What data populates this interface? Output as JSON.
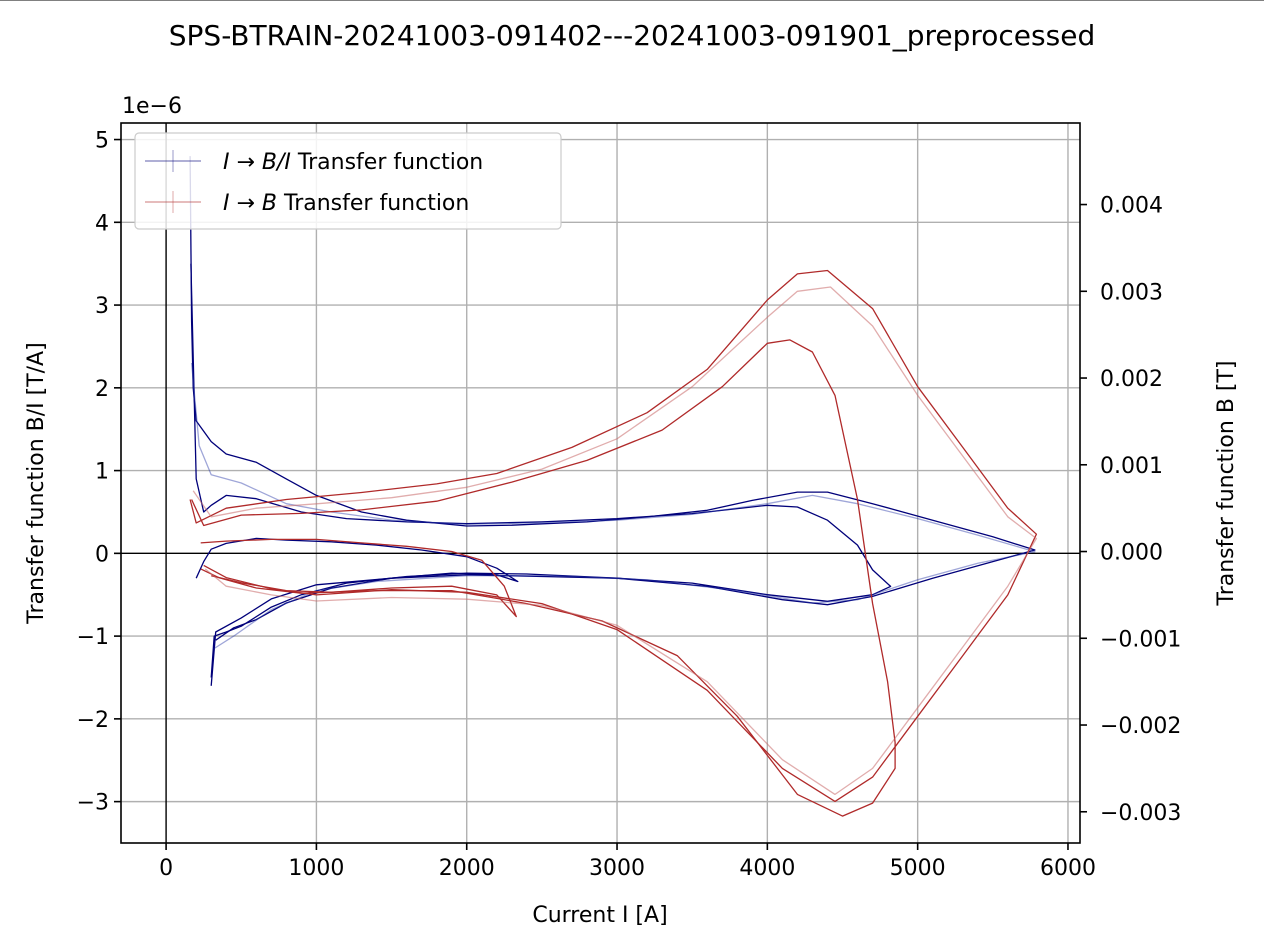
{
  "chart_data": {
    "type": "line",
    "title": "SPS-BTRAIN-20241003-091402---20241003-091901_preprocessed",
    "xlabel": "Current I [A]",
    "ylabel": "Transfer function B/I [T/A]",
    "y2label": "Transfer function B [T]",
    "y_offset_text": "1e−6",
    "xlim": [
      -300,
      6080
    ],
    "ylim": [
      -3.5,
      5.2
    ],
    "y2lim": [
      -0.00336,
      0.00494
    ],
    "x_ticks": [
      0,
      1000,
      2000,
      3000,
      4000,
      5000,
      6000
    ],
    "x_tick_labels": [
      "0",
      "1000",
      "2000",
      "3000",
      "4000",
      "5000",
      "6000"
    ],
    "y_ticks": [
      -3,
      -2,
      -1,
      0,
      1,
      2,
      3,
      4,
      5
    ],
    "y_tick_labels": [
      "−3",
      "−2",
      "−1",
      "0",
      "1",
      "2",
      "3",
      "4",
      "5"
    ],
    "y2_ticks": [
      -0.003,
      -0.002,
      -0.001,
      0.0,
      0.001,
      0.002,
      0.003,
      0.004
    ],
    "y2_tick_labels": [
      "−0.003",
      "−0.002",
      "−0.001",
      "0.000",
      "0.001",
      "0.002",
      "0.003",
      "0.004"
    ],
    "grid": true,
    "legend_placement": "top-left",
    "legend": [
      {
        "italic_part": "I",
        "arrow": " → ",
        "italic_part2": "B/I",
        "rest": " Transfer function",
        "color": "#00007a"
      },
      {
        "italic_part": "I",
        "arrow": " → ",
        "italic_part2": "B",
        "rest": " Transfer function",
        "color": "#b02a2a"
      }
    ],
    "series": [
      {
        "axis": "left",
        "color": "#00007a",
        "opacity": 1.0,
        "points": [
          [
            160,
            4.8
          ],
          [
            170,
            2.8
          ],
          [
            180,
            2.0
          ],
          [
            200,
            1.6
          ],
          [
            300,
            1.35
          ],
          [
            400,
            1.2
          ],
          [
            600,
            1.1
          ],
          [
            800,
            0.9
          ],
          [
            1000,
            0.7
          ],
          [
            1300,
            0.5
          ],
          [
            1600,
            0.4
          ],
          [
            2000,
            0.33
          ],
          [
            2300,
            0.34
          ],
          [
            2800,
            0.38
          ],
          [
            3200,
            0.44
          ],
          [
            3600,
            0.52
          ],
          [
            3900,
            0.64
          ],
          [
            4200,
            0.74
          ],
          [
            4400,
            0.74
          ],
          [
            4700,
            0.6
          ],
          [
            5100,
            0.4
          ],
          [
            5500,
            0.2
          ],
          [
            5780,
            0.04
          ],
          [
            5500,
            -0.1
          ],
          [
            5100,
            -0.3
          ],
          [
            4700,
            -0.52
          ],
          [
            4400,
            -0.62
          ],
          [
            4100,
            -0.56
          ],
          [
            3600,
            -0.4
          ],
          [
            3000,
            -0.3
          ],
          [
            2400,
            -0.25
          ],
          [
            2000,
            -0.24
          ],
          [
            1600,
            -0.28
          ],
          [
            1200,
            -0.36
          ],
          [
            900,
            -0.5
          ],
          [
            700,
            -0.65
          ],
          [
            500,
            -0.88
          ],
          [
            400,
            -0.95
          ],
          [
            320,
            -1.0
          ],
          [
            300,
            -1.5
          ]
        ]
      },
      {
        "axis": "left",
        "color": "#00007a",
        "opacity": 1.0,
        "points": [
          [
            165,
            3.5
          ],
          [
            200,
            0.9
          ],
          [
            250,
            0.5
          ],
          [
            300,
            0.58
          ],
          [
            400,
            0.7
          ],
          [
            600,
            0.66
          ],
          [
            900,
            0.5
          ],
          [
            1200,
            0.42
          ],
          [
            1600,
            0.38
          ],
          [
            2000,
            0.36
          ],
          [
            2500,
            0.38
          ],
          [
            3000,
            0.42
          ],
          [
            3500,
            0.48
          ],
          [
            4000,
            0.58
          ],
          [
            4200,
            0.56
          ],
          [
            4400,
            0.4
          ],
          [
            4600,
            0.1
          ],
          [
            4700,
            -0.2
          ],
          [
            4820,
            -0.4
          ],
          [
            4700,
            -0.5
          ],
          [
            4400,
            -0.58
          ],
          [
            4000,
            -0.5
          ],
          [
            3500,
            -0.36
          ],
          [
            3000,
            -0.3
          ],
          [
            2500,
            -0.28
          ],
          [
            2000,
            -0.26
          ],
          [
            1500,
            -0.3
          ],
          [
            1000,
            -0.38
          ],
          [
            700,
            -0.55
          ],
          [
            500,
            -0.78
          ],
          [
            330,
            -0.95
          ],
          [
            300,
            -1.6
          ]
        ]
      },
      {
        "axis": "left",
        "color": "#00007a",
        "opacity": 1.0,
        "points": [
          [
            200,
            -0.3
          ],
          [
            250,
            -0.1
          ],
          [
            300,
            0.05
          ],
          [
            400,
            0.12
          ],
          [
            600,
            0.18
          ],
          [
            800,
            0.16
          ],
          [
            1100,
            0.14
          ],
          [
            1400,
            0.1
          ],
          [
            1700,
            0.04
          ],
          [
            2000,
            -0.04
          ],
          [
            2200,
            -0.18
          ],
          [
            2340,
            -0.34
          ],
          [
            2200,
            -0.26
          ],
          [
            1900,
            -0.24
          ],
          [
            1500,
            -0.3
          ],
          [
            1100,
            -0.42
          ],
          [
            800,
            -0.6
          ],
          [
            600,
            -0.8
          ],
          [
            450,
            -0.9
          ],
          [
            330,
            -1.05
          ]
        ]
      },
      {
        "axis": "left",
        "color": "#2a3aa8",
        "opacity": 0.45,
        "points": [
          [
            170,
            2.3
          ],
          [
            220,
            1.3
          ],
          [
            300,
            0.95
          ],
          [
            500,
            0.85
          ],
          [
            800,
            0.6
          ],
          [
            1100,
            0.5
          ],
          [
            1500,
            0.4
          ],
          [
            2000,
            0.35
          ],
          [
            2500,
            0.37
          ],
          [
            3000,
            0.4
          ],
          [
            3500,
            0.47
          ],
          [
            4000,
            0.6
          ],
          [
            4300,
            0.7
          ],
          [
            4600,
            0.6
          ],
          [
            5000,
            0.42
          ],
          [
            5400,
            0.22
          ],
          [
            5780,
            0.02
          ],
          [
            5400,
            -0.12
          ],
          [
            5000,
            -0.32
          ],
          [
            4600,
            -0.56
          ],
          [
            4300,
            -0.6
          ],
          [
            3800,
            -0.45
          ],
          [
            3200,
            -0.32
          ],
          [
            2600,
            -0.27
          ],
          [
            2000,
            -0.27
          ],
          [
            1400,
            -0.34
          ],
          [
            1000,
            -0.45
          ],
          [
            700,
            -0.68
          ],
          [
            450,
            -1.0
          ],
          [
            320,
            -1.15
          ]
        ]
      },
      {
        "axis": "right",
        "color": "#b02a2a",
        "opacity": 1.0,
        "points": [
          [
            160,
            0.0006
          ],
          [
            200,
            0.00033
          ],
          [
            400,
            0.0005
          ],
          [
            800,
            0.0006
          ],
          [
            1300,
            0.00068
          ],
          [
            1800,
            0.00078
          ],
          [
            2200,
            0.0009
          ],
          [
            2700,
            0.0012
          ],
          [
            3200,
            0.0016
          ],
          [
            3600,
            0.0021
          ],
          [
            4000,
            0.0029
          ],
          [
            4200,
            0.0032
          ],
          [
            4400,
            0.00324
          ],
          [
            4700,
            0.0028
          ],
          [
            5000,
            0.0019
          ],
          [
            5300,
            0.0012
          ],
          [
            5600,
            0.0005
          ],
          [
            5790,
            0.0002
          ],
          [
            5600,
            -0.0005
          ],
          [
            5300,
            -0.0012
          ],
          [
            5000,
            -0.0019
          ],
          [
            4700,
            -0.0026
          ],
          [
            4450,
            -0.00288
          ],
          [
            4100,
            -0.0025
          ],
          [
            3600,
            -0.0016
          ],
          [
            3000,
            -0.0009
          ],
          [
            2500,
            -0.0006
          ],
          [
            2000,
            -0.00047
          ],
          [
            1500,
            -0.00044
          ],
          [
            1000,
            -0.0005
          ],
          [
            700,
            -0.00043
          ],
          [
            400,
            -0.0003
          ],
          [
            250,
            -0.00016
          ]
        ]
      },
      {
        "axis": "right",
        "color": "#b02a2a",
        "opacity": 1.0,
        "points": [
          [
            170,
            0.0006
          ],
          [
            250,
            0.0003
          ],
          [
            500,
            0.00042
          ],
          [
            900,
            0.00044
          ],
          [
            1300,
            0.00048
          ],
          [
            1800,
            0.00058
          ],
          [
            2300,
            0.0008
          ],
          [
            2800,
            0.00105
          ],
          [
            3300,
            0.0014
          ],
          [
            3700,
            0.0019
          ],
          [
            4000,
            0.0024
          ],
          [
            4150,
            0.00244
          ],
          [
            4300,
            0.0023
          ],
          [
            4450,
            0.0018
          ],
          [
            4600,
            0.0006
          ],
          [
            4700,
            -0.0006
          ],
          [
            4800,
            -0.0015
          ],
          [
            4850,
            -0.0022
          ],
          [
            4850,
            -0.0025
          ],
          [
            4700,
            -0.0029
          ],
          [
            4500,
            -0.00305
          ],
          [
            4200,
            -0.0028
          ],
          [
            3800,
            -0.0019
          ],
          [
            3400,
            -0.0012
          ],
          [
            2900,
            -0.0008
          ],
          [
            2400,
            -0.0006
          ],
          [
            1900,
            -0.00045
          ],
          [
            1400,
            -0.00045
          ],
          [
            900,
            -0.00048
          ],
          [
            600,
            -0.00042
          ],
          [
            350,
            -0.0003
          ],
          [
            230,
            -0.0002
          ]
        ]
      },
      {
        "axis": "right",
        "color": "#b02a2a",
        "opacity": 1.0,
        "points": [
          [
            230,
            0.0001
          ],
          [
            400,
            0.00012
          ],
          [
            700,
            0.00014
          ],
          [
            1000,
            0.00014
          ],
          [
            1300,
            0.0001
          ],
          [
            1600,
            6e-05
          ],
          [
            1900,
            0.0
          ],
          [
            2100,
            -0.0001
          ],
          [
            2250,
            -0.0004
          ],
          [
            2330,
            -0.00075
          ],
          [
            2200,
            -0.0005
          ],
          [
            1900,
            -0.0004
          ],
          [
            1500,
            -0.00042
          ],
          [
            1100,
            -0.00047
          ],
          [
            800,
            -0.00045
          ],
          [
            500,
            -0.00036
          ],
          [
            300,
            -0.00028
          ]
        ]
      },
      {
        "axis": "right",
        "color": "#c96a6a",
        "opacity": 0.55,
        "points": [
          [
            180,
            0.0007
          ],
          [
            300,
            0.0004
          ],
          [
            600,
            0.0005
          ],
          [
            1000,
            0.00055
          ],
          [
            1500,
            0.00062
          ],
          [
            2000,
            0.00074
          ],
          [
            2500,
            0.00095
          ],
          [
            3000,
            0.0013
          ],
          [
            3500,
            0.0019
          ],
          [
            4000,
            0.0027
          ],
          [
            4200,
            0.003
          ],
          [
            4420,
            0.00305
          ],
          [
            4700,
            0.0026
          ],
          [
            5000,
            0.0018
          ],
          [
            5300,
            0.0011
          ],
          [
            5600,
            0.0004
          ],
          [
            5790,
            0.00015
          ],
          [
            5600,
            -0.0004
          ],
          [
            5300,
            -0.0011
          ],
          [
            5000,
            -0.0018
          ],
          [
            4700,
            -0.0025
          ],
          [
            4450,
            -0.0028
          ],
          [
            4100,
            -0.0024
          ],
          [
            3600,
            -0.0015
          ],
          [
            3000,
            -0.00085
          ],
          [
            2500,
            -0.00062
          ],
          [
            2000,
            -0.00055
          ],
          [
            1500,
            -0.00053
          ],
          [
            1000,
            -0.00057
          ],
          [
            700,
            -0.0005
          ],
          [
            400,
            -0.0004
          ],
          [
            260,
            -0.0002
          ]
        ]
      }
    ]
  }
}
